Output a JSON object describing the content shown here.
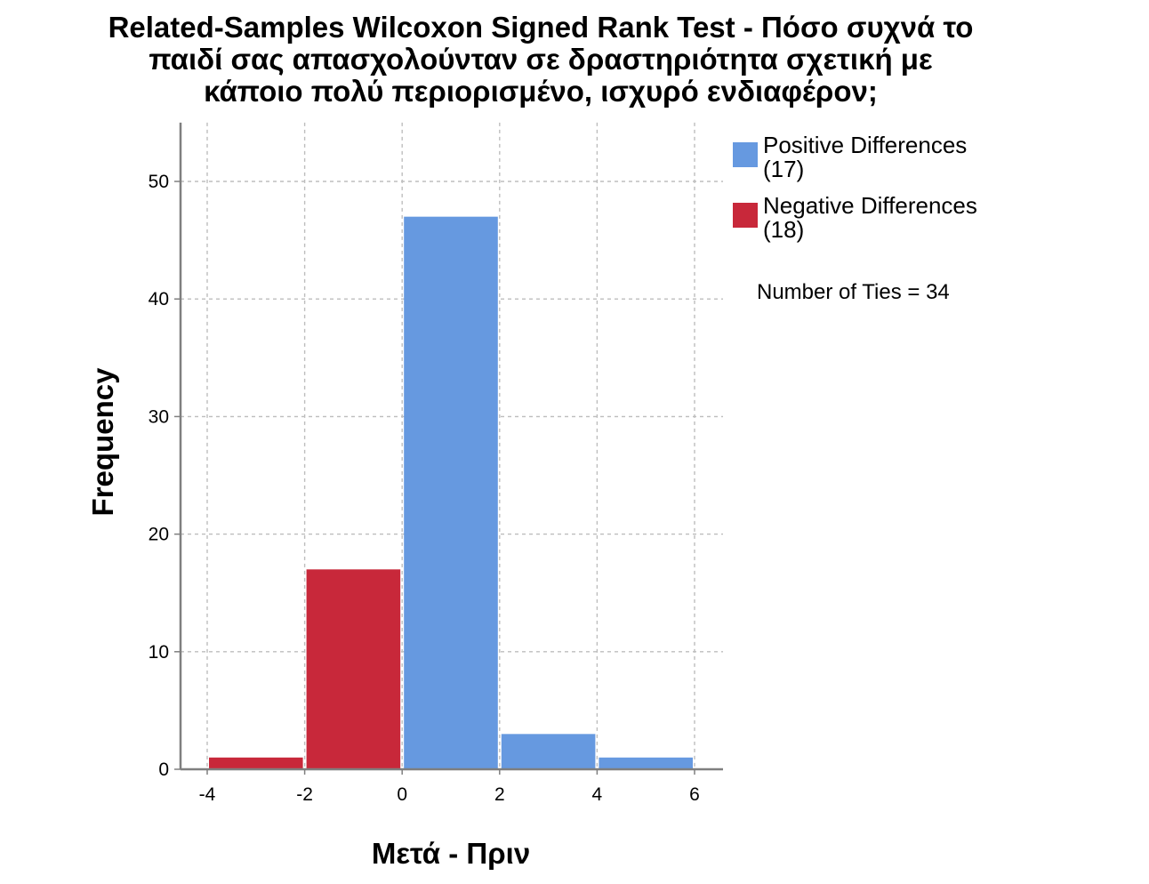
{
  "chart_data": {
    "type": "bar",
    "title_lines": [
      "Related-Samples Wilcoxon Signed Rank Test - Πόσο συχνά το",
      "παιδί σας απασχολούνταν σε δραστηριότητα σχετική με",
      "κάποιο πολύ περιορισμένο, ισχυρό ενδιαφέρον;"
    ],
    "xlabel": "Μετά - Πριν",
    "ylabel": "Frequency",
    "xlim": [
      -4,
      6
    ],
    "ylim": [
      0,
      55
    ],
    "xticks": [
      -4,
      -2,
      0,
      2,
      4,
      6
    ],
    "yticks": [
      0,
      10,
      20,
      30,
      40,
      50
    ],
    "grid": true,
    "legend_position": "top-right",
    "series": [
      {
        "name": "Positive Differences",
        "legend_label": [
          "Positive Differences",
          "(17)"
        ],
        "color": "#6699e0",
        "bins": [
          {
            "x0": 0,
            "x1": 2,
            "value": 47
          },
          {
            "x0": 2,
            "x1": 4,
            "value": 3
          },
          {
            "x0": 4,
            "x1": 6,
            "value": 1
          }
        ]
      },
      {
        "name": "Negative Differences",
        "legend_label": [
          "Negative Differences",
          "(18)"
        ],
        "color": "#c8283a",
        "bins": [
          {
            "x0": -4,
            "x1": -2,
            "value": 1
          },
          {
            "x0": -2,
            "x1": 0,
            "value": 17
          }
        ]
      }
    ],
    "annotation": "Number of Ties = 34"
  }
}
